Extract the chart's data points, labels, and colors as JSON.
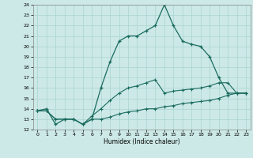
{
  "xlabel": "Humidex (Indice chaleur)",
  "xlim": [
    -0.5,
    23.5
  ],
  "ylim": [
    12,
    24
  ],
  "xticks": [
    0,
    1,
    2,
    3,
    4,
    5,
    6,
    7,
    8,
    9,
    10,
    11,
    12,
    13,
    14,
    15,
    16,
    17,
    18,
    19,
    20,
    21,
    22,
    23
  ],
  "yticks": [
    12,
    13,
    14,
    15,
    16,
    17,
    18,
    19,
    20,
    21,
    22,
    23,
    24
  ],
  "bg_color": "#cce9e7",
  "line_color": "#1a6b5e",
  "grid_color": "#aad4d0",
  "line1_x": [
    0,
    1,
    2,
    3,
    4,
    5,
    6,
    7,
    8,
    9,
    10,
    11,
    12,
    13,
    14,
    15,
    16,
    17,
    18,
    19,
    20,
    21,
    22,
    23
  ],
  "line1_y": [
    13.8,
    14.0,
    12.5,
    13.0,
    13.0,
    12.5,
    13.0,
    16.0,
    18.5,
    20.5,
    21.0,
    21.0,
    21.5,
    22.0,
    24.0,
    22.0,
    20.5,
    20.2,
    20.0,
    19.0,
    17.0,
    15.5,
    15.5,
    15.5
  ],
  "line2_x": [
    0,
    1,
    2,
    3,
    4,
    5,
    6,
    7,
    8,
    9,
    10,
    11,
    12,
    13,
    14,
    15,
    16,
    17,
    18,
    19,
    20,
    21,
    22,
    23
  ],
  "line2_y": [
    13.8,
    13.8,
    13.0,
    13.0,
    13.0,
    12.5,
    13.0,
    13.0,
    13.2,
    13.5,
    13.7,
    13.8,
    14.0,
    14.0,
    14.2,
    14.3,
    14.5,
    14.6,
    14.7,
    14.8,
    15.0,
    15.3,
    15.5,
    15.5
  ],
  "line3_x": [
    0,
    1,
    2,
    3,
    4,
    5,
    6,
    7,
    8,
    9,
    10,
    11,
    12,
    13,
    14,
    15,
    16,
    17,
    18,
    19,
    20,
    21,
    22,
    23
  ],
  "line3_y": [
    13.8,
    13.8,
    13.0,
    13.0,
    13.0,
    12.5,
    13.3,
    14.0,
    14.8,
    15.5,
    16.0,
    16.2,
    16.5,
    16.8,
    15.5,
    15.7,
    15.8,
    15.9,
    16.0,
    16.2,
    16.5,
    16.5,
    15.5,
    15.5
  ]
}
